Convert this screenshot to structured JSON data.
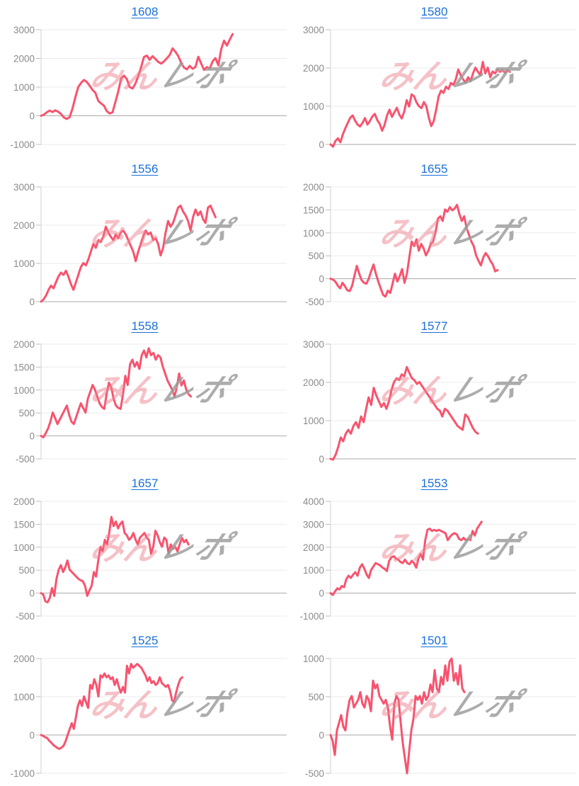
{
  "watermark": {
    "pink_text": "みん",
    "gray_text": "レポ"
  },
  "colors": {
    "line": "#f8536e",
    "title_link": "#1a6fd8",
    "tick_label": "#8b8b8b",
    "grid_light": "#ebebeb",
    "zero_line": "#a8a8a8",
    "axis_line": "#d2d2d2",
    "tick_mark": "#bcbcbc",
    "watermark_pink": "#ec8490",
    "watermark_gray": "#9b9b9b"
  },
  "chart_data": [
    {
      "type": "line",
      "title": "1608",
      "ylim": [
        -1000,
        3000
      ],
      "yticks": [
        3000,
        2000,
        1000,
        0,
        -1000
      ],
      "x_end": 0.78,
      "values": [
        0,
        40,
        120,
        180,
        130,
        190,
        140,
        60,
        -60,
        -110,
        -50,
        250,
        650,
        1000,
        1150,
        1250,
        1180,
        1050,
        900,
        800,
        520,
        430,
        350,
        160,
        80,
        120,
        480,
        850,
        1300,
        1400,
        1280,
        1000,
        950,
        1120,
        1380,
        1700,
        2050,
        2100,
        1950,
        2080,
        1980,
        1880,
        1820,
        1900,
        2000,
        2120,
        2350,
        2230,
        2080,
        1850,
        1680,
        1620,
        1740,
        1640,
        1700,
        2060,
        1820,
        1600,
        1700,
        1640,
        1900,
        2010,
        1760,
        2320,
        2620,
        2450,
        2660,
        2850
      ]
    },
    {
      "type": "line",
      "title": "1580",
      "ylim": [
        0,
        3000
      ],
      "yticks": [
        3000,
        2000,
        1000,
        0
      ],
      "x_end": 0.73,
      "values": [
        0,
        -60,
        90,
        160,
        60,
        260,
        420,
        560,
        700,
        760,
        620,
        520,
        470,
        560,
        690,
        520,
        610,
        730,
        800,
        640,
        540,
        360,
        510,
        760,
        910,
        720,
        840,
        960,
        780,
        680,
        860,
        1160,
        990,
        1310,
        1260,
        1100,
        1000,
        950,
        1110,
        1000,
        700,
        480,
        610,
        910,
        1260,
        1410,
        1350,
        1510,
        1450,
        1610,
        1560,
        1710,
        1960,
        1810,
        1700,
        1610,
        1760,
        1650,
        1860,
        2010,
        1900,
        1810,
        2160,
        1860,
        2010,
        1760,
        1910,
        1860,
        1960,
        1900,
        1940,
        1880,
        1950,
        1900
      ]
    },
    {
      "type": "line",
      "title": "1556",
      "ylim": [
        0,
        3000
      ],
      "yticks": [
        3000,
        2000,
        1000,
        0
      ],
      "x_end": 0.71,
      "values": [
        0,
        60,
        160,
        310,
        420,
        350,
        510,
        660,
        760,
        700,
        810,
        650,
        460,
        310,
        510,
        710,
        910,
        1010,
        950,
        1110,
        1310,
        1510,
        1410,
        1610,
        1560,
        1710,
        1960,
        1810,
        1700,
        1610,
        1760,
        1660,
        1810,
        1860,
        1760,
        1610,
        1460,
        1310,
        1060,
        1310,
        1510,
        1710,
        1860,
        1760,
        1810,
        1610,
        1660,
        1510,
        1210,
        1410,
        1810,
        2110,
        1960,
        2060,
        2260,
        2460,
        2510,
        2360,
        2260,
        2110,
        1860,
        2210,
        2410,
        2260,
        2360,
        2160,
        2060,
        2460,
        2510,
        2360,
        2210
      ]
    },
    {
      "type": "line",
      "title": "1655",
      "ylim": [
        -500,
        2000
      ],
      "yticks": [
        2000,
        1500,
        1000,
        500,
        0,
        -500
      ],
      "x_end": 0.68,
      "values": [
        0,
        -20,
        -60,
        -150,
        -210,
        -90,
        -160,
        -250,
        -270,
        -160,
        60,
        280,
        110,
        -30,
        -90,
        -110,
        0,
        160,
        310,
        110,
        -60,
        -210,
        -350,
        -390,
        -260,
        -310,
        -110,
        110,
        -60,
        60,
        210,
        -90,
        110,
        460,
        810,
        710,
        860,
        610,
        760,
        660,
        510,
        610,
        760,
        810,
        1010,
        1310,
        1360,
        1260,
        1510,
        1460,
        1560,
        1490,
        1530,
        1610,
        1410,
        1260,
        1360,
        1110,
        960,
        810,
        710,
        510,
        390,
        290,
        460,
        560,
        490,
        390,
        310,
        160,
        190
      ]
    },
    {
      "type": "line",
      "title": "1558",
      "ylim": [
        -500,
        2000
      ],
      "yticks": [
        2000,
        1500,
        1000,
        500,
        0,
        -500
      ],
      "x_end": 0.61,
      "values": [
        0,
        -30,
        60,
        160,
        310,
        510,
        390,
        260,
        360,
        460,
        560,
        660,
        460,
        310,
        260,
        410,
        560,
        710,
        610,
        510,
        810,
        960,
        1110,
        1010,
        860,
        710,
        630,
        590,
        910,
        1160,
        1060,
        810,
        660,
        610,
        590,
        910,
        1310,
        1110,
        1560,
        1660,
        1510,
        1610,
        1460,
        1760,
        1860,
        1710,
        1910,
        1760,
        1810,
        1660,
        1760,
        1710,
        1510,
        1360,
        1210,
        1110,
        1010,
        860,
        1060,
        1360,
        1100,
        1210,
        1010,
        910,
        860
      ]
    },
    {
      "type": "line",
      "title": "1577",
      "ylim": [
        0,
        3000
      ],
      "yticks": [
        3000,
        2000,
        1000,
        0
      ],
      "x_end": 0.6,
      "values": [
        0,
        -20,
        110,
        310,
        560,
        460,
        660,
        760,
        660,
        860,
        960,
        810,
        1110,
        960,
        1310,
        1610,
        1410,
        1860,
        1660,
        1510,
        1360,
        1460,
        1310,
        1510,
        1810,
        2010,
        2110,
        2060,
        2210,
        2160,
        2400,
        2250,
        2110,
        2060,
        1960,
        2010,
        1910,
        1810,
        1710,
        1610,
        1510,
        1410,
        1310,
        1260,
        1110,
        1310,
        1260,
        1160,
        1060,
        960,
        860,
        810,
        760,
        1160,
        1100,
        950,
        810,
        710,
        660
      ]
    },
    {
      "type": "line",
      "title": "1657",
      "ylim": [
        -500,
        2000
      ],
      "yticks": [
        2000,
        1500,
        1000,
        500,
        0,
        -500
      ],
      "x_end": 0.6,
      "values": [
        0,
        -30,
        -180,
        -200,
        -100,
        110,
        -60,
        310,
        510,
        610,
        460,
        560,
        710,
        510,
        460,
        410,
        360,
        310,
        280,
        260,
        160,
        -60,
        60,
        160,
        460,
        360,
        710,
        1010,
        910,
        1160,
        1060,
        1310,
        1660,
        1460,
        1560,
        1410,
        1510,
        1560,
        1310,
        1260,
        1160,
        1210,
        1310,
        1160,
        1060,
        1210,
        1260,
        1310,
        1210,
        1160,
        860,
        1010,
        1360,
        1260,
        1110,
        1010,
        1210,
        1160,
        860,
        1060,
        960,
        1010,
        910,
        1060,
        1210,
        1110,
        1160,
        1060
      ]
    },
    {
      "type": "line",
      "title": "1553",
      "ylim": [
        -1000,
        4000
      ],
      "yticks": [
        4000,
        3000,
        2000,
        1000,
        0,
        -1000
      ],
      "x_end": 0.615,
      "values": [
        0,
        -80,
        80,
        210,
        160,
        310,
        260,
        610,
        760,
        660,
        810,
        910,
        760,
        1110,
        1260,
        1060,
        810,
        660,
        1010,
        1160,
        1310,
        1260,
        1210,
        1110,
        1060,
        960,
        1410,
        1560,
        1610,
        1510,
        1460,
        1360,
        1310,
        1460,
        1310,
        1260,
        1410,
        1310,
        1110,
        1510,
        1710,
        1460,
        2310,
        2760,
        2810,
        2710,
        2760,
        2710,
        2760,
        2710,
        2660,
        2610,
        2310,
        2460,
        2560,
        2610,
        2560,
        2360,
        2310,
        2410,
        2310,
        2360,
        2310,
        2710,
        2510,
        2810,
        2960,
        3110
      ]
    },
    {
      "type": "line",
      "title": "1525",
      "ylim": [
        -1000,
        2000
      ],
      "yticks": [
        2000,
        1000,
        0,
        -1000
      ],
      "x_end": 0.575,
      "values": [
        0,
        -20,
        -60,
        -80,
        -150,
        -200,
        -260,
        -300,
        -340,
        -360,
        -330,
        -280,
        -160,
        0,
        160,
        310,
        160,
        460,
        760,
        910,
        760,
        1010,
        860,
        710,
        1310,
        1210,
        1460,
        1310,
        1010,
        1560,
        1510,
        1610,
        1510,
        1560,
        1460,
        1510,
        1310,
        1460,
        1260,
        1110,
        1260,
        1110,
        1810,
        1610,
        1860,
        1760,
        1810,
        1860,
        1810,
        1760,
        1660,
        1560,
        1410,
        1510,
        1360,
        1410,
        1310,
        1360,
        1510,
        1360,
        1310,
        1260,
        1310,
        1160,
        910,
        860,
        1110,
        1310,
        1460,
        1510
      ]
    },
    {
      "type": "line",
      "title": "1501",
      "ylim": [
        -500,
        1000
      ],
      "yticks": [
        1000,
        500,
        0,
        -500
      ],
      "x_end": 0.545,
      "values": [
        0,
        -80,
        -260,
        60,
        160,
        260,
        110,
        60,
        310,
        460,
        510,
        360,
        410,
        460,
        560,
        410,
        360,
        510,
        460,
        310,
        710,
        610,
        660,
        510,
        460,
        410,
        460,
        360,
        110,
        -60,
        410,
        510,
        460,
        160,
        -110,
        -310,
        -500,
        -210,
        60,
        210,
        510,
        460,
        510,
        410,
        560,
        460,
        510,
        660,
        560,
        850,
        610,
        560,
        760,
        660,
        910,
        710,
        960,
        1000,
        710,
        810,
        660,
        910,
        610,
        560
      ]
    }
  ]
}
